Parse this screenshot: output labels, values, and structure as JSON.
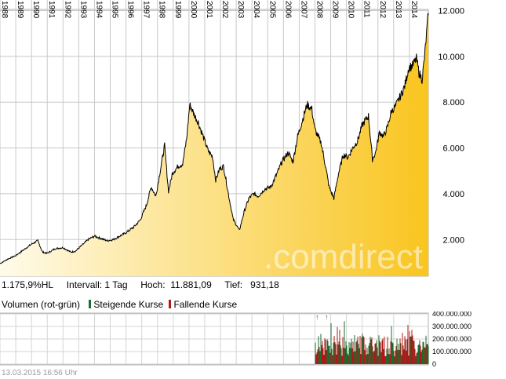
{
  "chart_data": [
    {
      "type": "area",
      "x": [
        1988,
        1989,
        1990,
        1991,
        1992,
        1993,
        1994,
        1995,
        1996,
        1997,
        1998,
        1999,
        2000,
        2001,
        2002,
        2003,
        2004,
        2005,
        2006,
        2007,
        2008,
        2009,
        2010,
        2011,
        2012,
        2013,
        2014,
        2015
      ],
      "x_tick_labels": [
        "1988",
        "1989",
        "1990",
        "1991",
        "1992",
        "1993",
        "1994",
        "1995",
        "1996",
        "1997",
        "1998",
        "1999",
        "2000",
        "2001",
        "2002",
        "2003",
        "2004",
        "2005",
        "2006",
        "2007",
        "2008",
        "2009",
        "2010",
        "2011",
        "2012",
        "2013",
        "2014"
      ],
      "y_tick_labels": [
        "12.000",
        "10.000",
        "8.000",
        "6.000",
        "4.000",
        "2.000"
      ],
      "y_ticks": [
        12000,
        10000,
        8000,
        6000,
        4000,
        2000
      ],
      "ylim": [
        400,
        12050
      ],
      "xlim": [
        1988,
        2015.2
      ],
      "series": [
        {
          "points": [
            [
              1988.0,
              950
            ],
            [
              1988.5,
              1150
            ],
            [
              1989.0,
              1300
            ],
            [
              1989.5,
              1550
            ],
            [
              1990.0,
              1800
            ],
            [
              1990.4,
              1950
            ],
            [
              1990.7,
              1450
            ],
            [
              1991.0,
              1400
            ],
            [
              1991.5,
              1600
            ],
            [
              1992.0,
              1650
            ],
            [
              1992.5,
              1450
            ],
            [
              1992.8,
              1500
            ],
            [
              1993.2,
              1750
            ],
            [
              1993.6,
              2000
            ],
            [
              1994.0,
              2150
            ],
            [
              1994.4,
              2050
            ],
            [
              1994.8,
              1950
            ],
            [
              1995.2,
              2000
            ],
            [
              1995.6,
              2150
            ],
            [
              1996.0,
              2300
            ],
            [
              1996.5,
              2550
            ],
            [
              1996.9,
              2850
            ],
            [
              1997.3,
              3500
            ],
            [
              1997.6,
              4300
            ],
            [
              1997.9,
              3900
            ],
            [
              1998.2,
              5100
            ],
            [
              1998.45,
              6100
            ],
            [
              1998.7,
              4100
            ],
            [
              1998.95,
              4900
            ],
            [
              1999.3,
              5200
            ],
            [
              1999.6,
              5300
            ],
            [
              1999.85,
              6400
            ],
            [
              2000.05,
              7900
            ],
            [
              2000.3,
              7500
            ],
            [
              2000.6,
              7100
            ],
            [
              2000.9,
              6500
            ],
            [
              2001.2,
              5900
            ],
            [
              2001.5,
              5600
            ],
            [
              2001.7,
              4600
            ],
            [
              2001.95,
              5100
            ],
            [
              2002.2,
              5200
            ],
            [
              2002.5,
              4000
            ],
            [
              2002.8,
              2900
            ],
            [
              2003.2,
              2400
            ],
            [
              2003.5,
              3200
            ],
            [
              2003.8,
              3800
            ],
            [
              2004.1,
              4000
            ],
            [
              2004.4,
              3900
            ],
            [
              2004.8,
              4200
            ],
            [
              2005.2,
              4300
            ],
            [
              2005.6,
              4900
            ],
            [
              2005.9,
              5400
            ],
            [
              2006.3,
              5800
            ],
            [
              2006.6,
              5400
            ],
            [
              2006.9,
              6500
            ],
            [
              2007.2,
              7200
            ],
            [
              2007.5,
              7900
            ],
            [
              2007.8,
              7700
            ],
            [
              2008.0,
              6800
            ],
            [
              2008.4,
              6200
            ],
            [
              2008.7,
              5100
            ],
            [
              2008.9,
              4300
            ],
            [
              2009.2,
              3800
            ],
            [
              2009.5,
              4900
            ],
            [
              2009.8,
              5700
            ],
            [
              2010.1,
              5600
            ],
            [
              2010.4,
              6000
            ],
            [
              2010.7,
              6300
            ],
            [
              2011.0,
              7000
            ],
            [
              2011.4,
              7400
            ],
            [
              2011.65,
              5500
            ],
            [
              2011.85,
              5800
            ],
            [
              2012.1,
              6700
            ],
            [
              2012.35,
              6500
            ],
            [
              2012.6,
              6900
            ],
            [
              2012.85,
              7600
            ],
            [
              2013.1,
              7800
            ],
            [
              2013.45,
              8300
            ],
            [
              2013.7,
              8700
            ],
            [
              2013.95,
              9500
            ],
            [
              2014.2,
              9600
            ],
            [
              2014.45,
              9900
            ],
            [
              2014.6,
              9300
            ],
            [
              2014.8,
              9000
            ],
            [
              2014.95,
              9900
            ],
            [
              2015.05,
              10700
            ],
            [
              2015.15,
              11500
            ],
            [
              2015.2,
              11800
            ]
          ]
        }
      ],
      "fill_colors": [
        "#fffbea",
        "#f9c51f"
      ],
      "line_color": "#000000",
      "grid": true,
      "watermark": ".comdirect"
    },
    {
      "type": "bar",
      "title": "Volumen (rot-grün)",
      "y_tick_labels": [
        "400.000.000",
        "300.000.000",
        "200.000.000",
        "100.000.000",
        "0"
      ],
      "y_ticks": [
        400000000,
        300000000,
        200000000,
        100000000,
        0
      ],
      "ylim": [
        0,
        400000000
      ],
      "xlim": [
        1988,
        2015.2
      ],
      "data_start": 2008.0,
      "series": [
        {
          "name": "Steigende Kurse",
          "color": "#1e6b2e"
        },
        {
          "name": "Fallende Kurse",
          "color": "#b01818"
        }
      ],
      "grid": true
    }
  ],
  "stats": {
    "performance": "1.175,9%HL",
    "interval": "Intervall: 1 Tag",
    "high_label": "Hoch:",
    "high_value": "11.881,09",
    "low_label": "Tief:",
    "low_value": "931,18"
  },
  "volume_legend": {
    "title": "Volumen (rot-grün)",
    "rising": "Steigende Kurse",
    "falling": "Fallende Kurse"
  },
  "timestamp": "13.03.2015 16:56 Uhr"
}
